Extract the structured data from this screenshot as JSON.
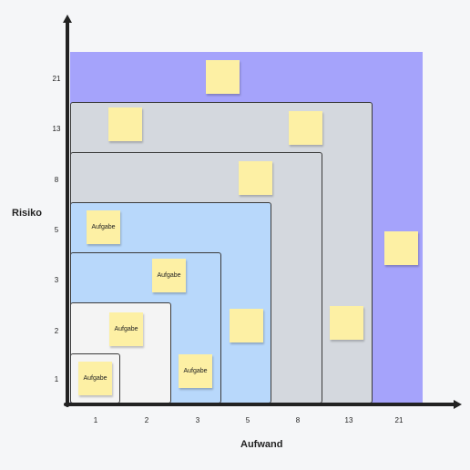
{
  "axes": {
    "y_title": "Risiko",
    "x_title": "Aufwand",
    "y_ticks": [
      "21",
      "13",
      "8",
      "5",
      "3",
      "2",
      "1"
    ],
    "x_ticks": [
      "1",
      "2",
      "3",
      "5",
      "8",
      "13",
      "21"
    ]
  },
  "zones": [
    {
      "name": "zone-21",
      "color": "#a5a3fb",
      "outlined": false
    },
    {
      "name": "zone-13",
      "color": "#d4d8de",
      "outlined": true
    },
    {
      "name": "zone-8",
      "color": "#d4d8de",
      "outlined": true
    },
    {
      "name": "zone-5",
      "color": "#b8d8fb",
      "outlined": true
    },
    {
      "name": "zone-3",
      "color": "#b8d8fb",
      "outlined": true
    },
    {
      "name": "zone-2",
      "color": "#f4f4f4",
      "outlined": true
    },
    {
      "name": "zone-1",
      "color": "#f4f4f4",
      "outlined": true
    }
  ],
  "note_color": "#fdf0a4",
  "notes": [
    {
      "label": "",
      "zone": "21"
    },
    {
      "label": "",
      "zone": "13"
    },
    {
      "label": "",
      "zone": "13"
    },
    {
      "label": "",
      "zone": "8"
    },
    {
      "label": "Aufgabe",
      "zone": "5"
    },
    {
      "label": "Aufgabe",
      "zone": "3"
    },
    {
      "label": "Aufgabe",
      "zone": "2"
    },
    {
      "label": "Aufgabe",
      "zone": "1"
    },
    {
      "label": "Aufgabe",
      "zone": "3"
    },
    {
      "label": "",
      "zone": "5"
    },
    {
      "label": "",
      "zone": "13"
    },
    {
      "label": "",
      "zone": "21"
    }
  ]
}
